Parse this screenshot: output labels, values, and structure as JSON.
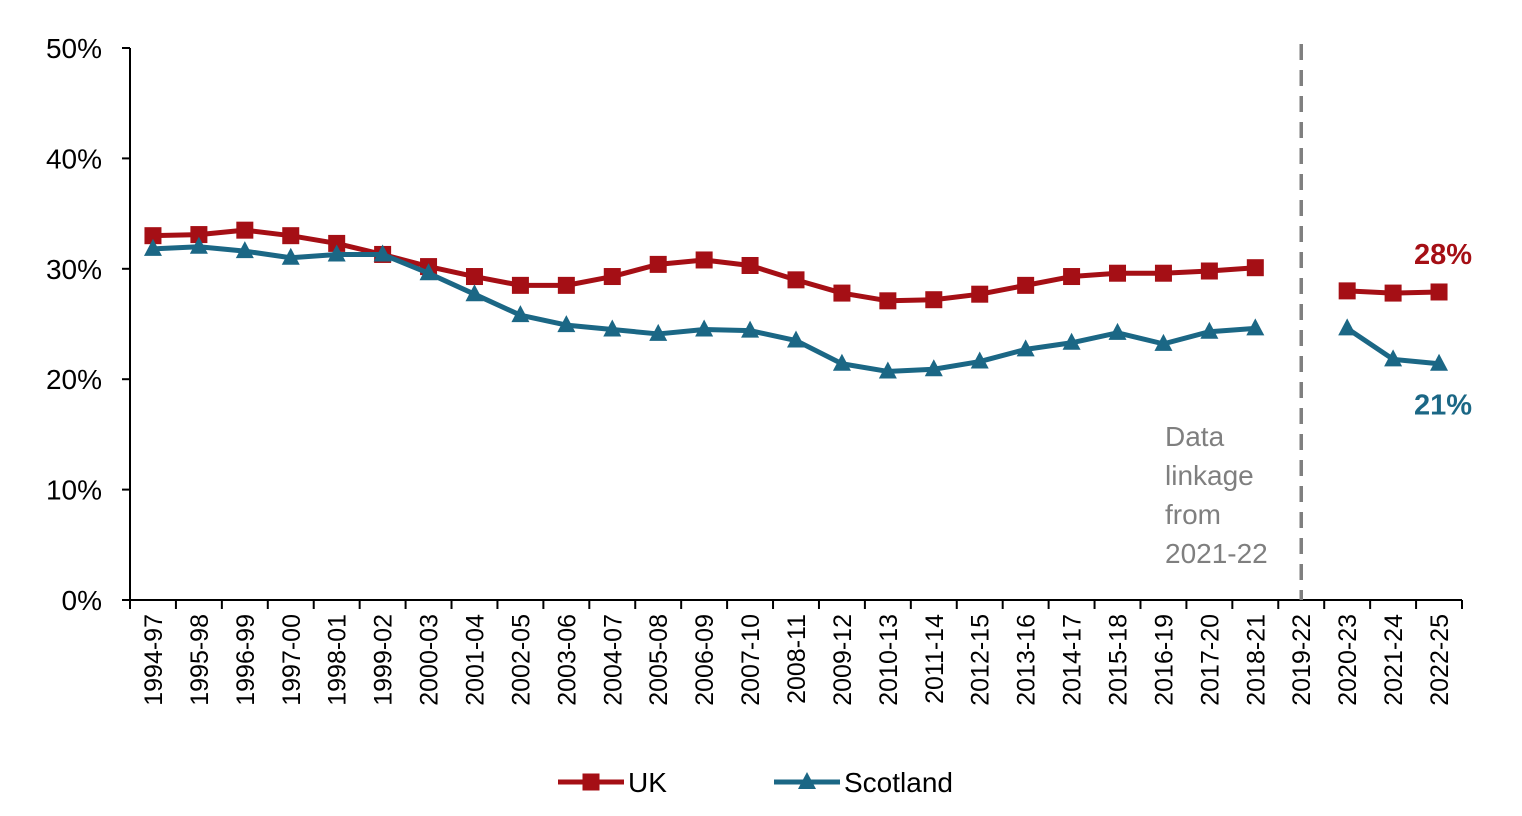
{
  "chart_data": {
    "type": "line",
    "categories": [
      "1994-97",
      "1995-98",
      "1996-99",
      "1997-00",
      "1998-01",
      "1999-02",
      "2000-03",
      "2001-04",
      "2002-05",
      "2003-06",
      "2004-07",
      "2005-08",
      "2006-09",
      "2007-10",
      "2008-11",
      "2009-12",
      "2010-13",
      "2011-14",
      "2012-15",
      "2013-16",
      "2014-17",
      "2015-18",
      "2016-19",
      "2017-20",
      "2018-21",
      "2019-22",
      "2020-23",
      "2021-24",
      "2022-25"
    ],
    "ylim": [
      0,
      50
    ],
    "yticks": [
      "0%",
      "10%",
      "20%",
      "30%",
      "40%",
      "50%"
    ],
    "series": [
      {
        "name": "UK",
        "color": "#a50f15",
        "marker": "square",
        "values": [
          33,
          33.1,
          33.5,
          33,
          32.3,
          31.3,
          30.2,
          29.3,
          28.5,
          28.5,
          29.3,
          30.4,
          30.8,
          30.3,
          29,
          27.8,
          27.1,
          27.2,
          27.7,
          28.5,
          29.3,
          29.6,
          29.6,
          29.8,
          30.1,
          null,
          28,
          27.8,
          27.9
        ],
        "end_label": "28%"
      },
      {
        "name": "Scotland",
        "color": "#1b6785",
        "marker": "triangle",
        "values": [
          31.8,
          32,
          31.6,
          31,
          31.3,
          31.3,
          29.6,
          27.7,
          25.8,
          24.9,
          24.5,
          24.1,
          24.5,
          24.4,
          23.5,
          21.4,
          20.7,
          20.9,
          21.6,
          22.7,
          23.3,
          24.2,
          23.2,
          24.3,
          24.6,
          null,
          24.6,
          21.8,
          21.4
        ],
        "end_label": "21%"
      }
    ],
    "annotation": {
      "lines": [
        "Data",
        "linkage",
        "from",
        "2021-22"
      ],
      "divider_at": "2019-22"
    },
    "legend_placement": "bottom",
    "grid": false
  }
}
